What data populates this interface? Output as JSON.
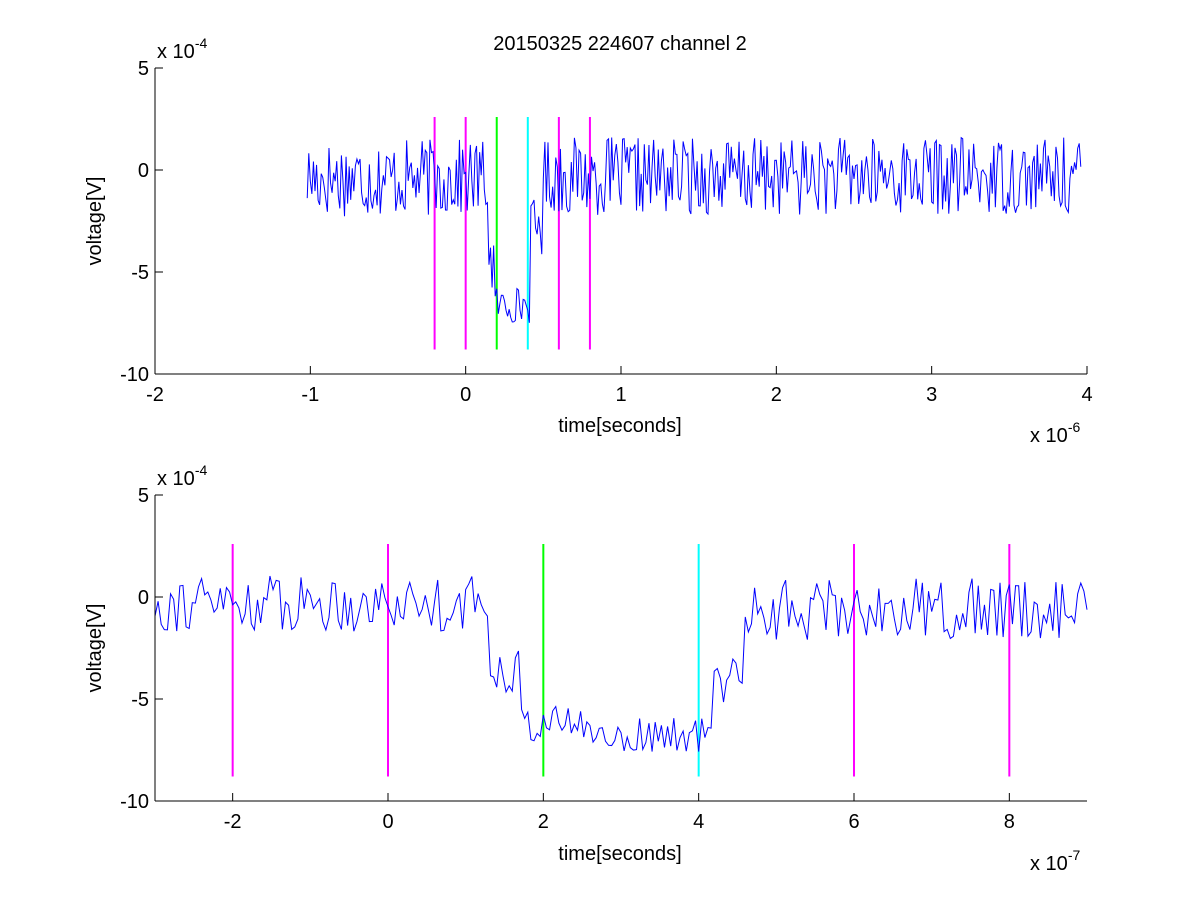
{
  "chart_data": [
    {
      "type": "line",
      "title": "20150325 224607 channel 2",
      "xlabel": "time[seconds]",
      "ylabel": "voltage[V]",
      "x_exponent_label": "x 10",
      "x_exponent_power": "-6",
      "y_exponent_label": "x 10",
      "y_exponent_power": "-4",
      "xlim": [
        -2,
        4
      ],
      "ylim": [
        -10,
        5
      ],
      "xticks": [
        "-2",
        "-1",
        "0",
        "1",
        "2",
        "3",
        "4"
      ],
      "yticks": [
        "-10",
        "-5",
        "0",
        "5"
      ],
      "grid": false,
      "signal": {
        "color": "#0000ff",
        "x_start": -1.02,
        "x_end": 3.96,
        "step": 0.01,
        "segments": [
          {
            "from": -1.02,
            "to": 0.15,
            "base": -0.4,
            "noise": 1.9
          },
          {
            "from": 0.15,
            "to": 0.19,
            "base": -4.5,
            "noise": 1.6
          },
          {
            "from": 0.19,
            "to": 0.42,
            "base": -6.6,
            "noise": 0.9
          },
          {
            "from": 0.42,
            "to": 0.5,
            "base": -2.8,
            "noise": 1.4
          },
          {
            "from": 0.5,
            "to": 3.96,
            "base": -0.3,
            "noise": 1.9
          }
        ]
      },
      "markers": [
        {
          "x": -0.2,
          "y0": -8.8,
          "y1": 2.6,
          "color": "#ff00ff"
        },
        {
          "x": 0.0,
          "y0": -8.8,
          "y1": 2.6,
          "color": "#ff00ff"
        },
        {
          "x": 0.2,
          "y0": -8.8,
          "y1": 2.6,
          "color": "#00ff00"
        },
        {
          "x": 0.4,
          "y0": -8.8,
          "y1": 2.6,
          "color": "#00ffff"
        },
        {
          "x": 0.6,
          "y0": -8.8,
          "y1": 2.6,
          "color": "#ff00ff"
        },
        {
          "x": 0.8,
          "y0": -8.8,
          "y1": 2.6,
          "color": "#ff00ff"
        }
      ]
    },
    {
      "type": "line",
      "xlabel": "time[seconds]",
      "ylabel": "voltage[V]",
      "x_exponent_label": "x 10",
      "x_exponent_power": "-7",
      "y_exponent_label": "x 10",
      "y_exponent_power": "-4",
      "xlim": [
        -3,
        9
      ],
      "ylim": [
        -10,
        5
      ],
      "xticks": [
        "-2",
        "0",
        "2",
        "4",
        "6",
        "8"
      ],
      "yticks": [
        "-10",
        "-5",
        "0",
        "5"
      ],
      "grid": false,
      "signal": {
        "color": "#0000ff",
        "x_start": -3,
        "x_end": 9,
        "step": 0.04,
        "segments": [
          {
            "from": -3,
            "to": 1.3,
            "base": -0.3,
            "noise": 1.4
          },
          {
            "from": 1.3,
            "to": 1.7,
            "base": -3.5,
            "noise": 1.2
          },
          {
            "from": 1.7,
            "to": 2.6,
            "base": -6.2,
            "noise": 0.9
          },
          {
            "from": 2.6,
            "to": 4.2,
            "base": -6.8,
            "noise": 0.9
          },
          {
            "from": 4.2,
            "to": 4.6,
            "base": -4.0,
            "noise": 1.3
          },
          {
            "from": 4.6,
            "to": 9,
            "base": -0.6,
            "noise": 1.5
          }
        ]
      },
      "markers": [
        {
          "x": -2,
          "y0": -8.8,
          "y1": 2.6,
          "color": "#ff00ff"
        },
        {
          "x": 0,
          "y0": -8.8,
          "y1": 2.6,
          "color": "#ff00ff"
        },
        {
          "x": 2,
          "y0": -8.8,
          "y1": 2.6,
          "color": "#00ff00"
        },
        {
          "x": 4,
          "y0": -8.8,
          "y1": 2.6,
          "color": "#00ffff"
        },
        {
          "x": 6,
          "y0": -8.8,
          "y1": 2.6,
          "color": "#ff00ff"
        },
        {
          "x": 8,
          "y0": -8.8,
          "y1": 2.6,
          "color": "#ff00ff"
        }
      ]
    }
  ]
}
